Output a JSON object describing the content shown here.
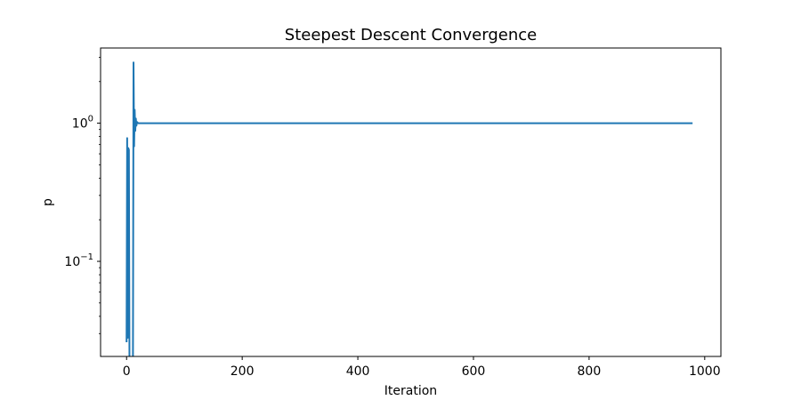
{
  "chart_data": {
    "type": "line",
    "title": "Steepest Descent Convergence",
    "xlabel": "Iteration",
    "ylabel": "p",
    "xlim": [
      -45,
      1028
    ],
    "ylim": [
      0.0205,
      3.5
    ],
    "yscale": "log",
    "grid": false,
    "x_ticks": [
      {
        "value": 0,
        "label": "0"
      },
      {
        "value": 200,
        "label": "200"
      },
      {
        "value": 400,
        "label": "400"
      },
      {
        "value": 600,
        "label": "600"
      },
      {
        "value": 800,
        "label": "800"
      },
      {
        "value": 1000,
        "label": "1000"
      }
    ],
    "y_ticks": [
      {
        "value": 0.1,
        "base": "10",
        "exp": "−1"
      },
      {
        "value": 1,
        "base": "10",
        "exp": "0"
      }
    ],
    "series": [
      {
        "color": "#1f77b4",
        "x": [
          0,
          1,
          2,
          3,
          4,
          5,
          6,
          7,
          8,
          9,
          10,
          11,
          12,
          13,
          14,
          15,
          16,
          17,
          18,
          20,
          25,
          30,
          50,
          100,
          200,
          400,
          600,
          800,
          979
        ],
        "y": [
          0.026,
          0.78,
          0.028,
          0.66,
          0.64,
          0.018,
          0.018,
          0.018,
          0.018,
          0.018,
          0.018,
          0.018,
          2.75,
          0.68,
          1.25,
          0.88,
          1.08,
          0.96,
          1.02,
          1.0,
          1.0,
          1.0,
          1.0,
          1.0,
          1.0,
          1.0,
          1.0,
          1.0,
          1.0
        ]
      }
    ]
  }
}
